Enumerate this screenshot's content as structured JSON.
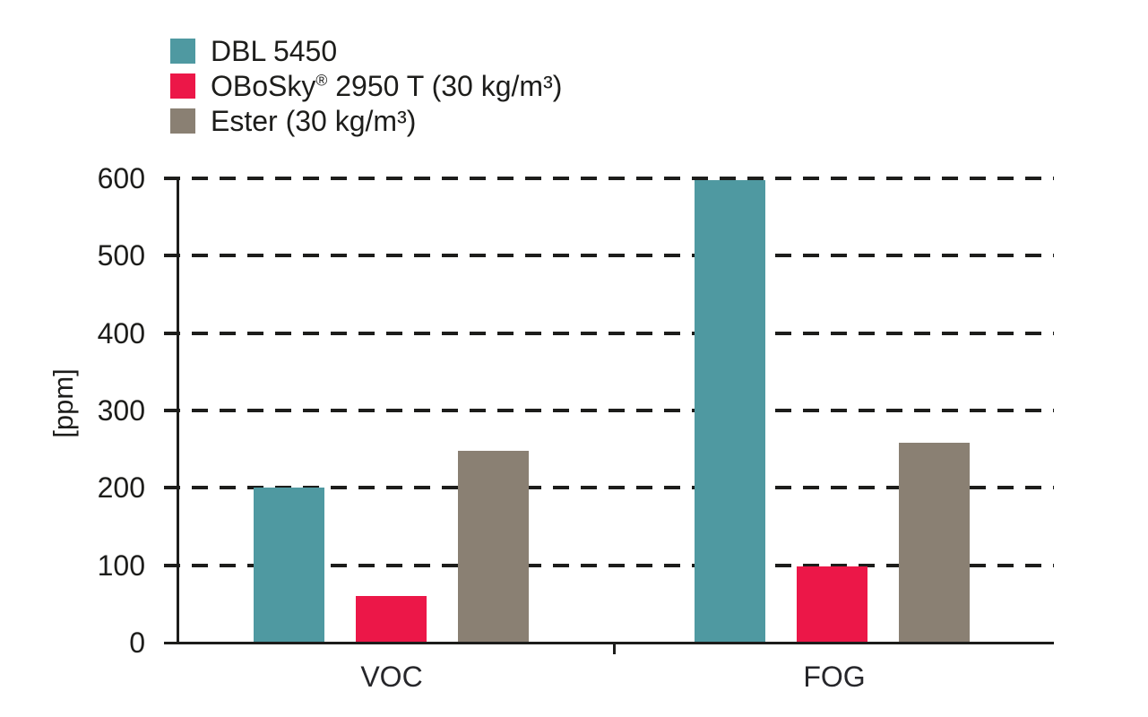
{
  "chart_data": {
    "type": "bar",
    "categories": [
      "VOC",
      "FOG"
    ],
    "series": [
      {
        "name": "DBL 5450",
        "color": "#4f99a1",
        "values": [
          200,
          598
        ]
      },
      {
        "name": "OBoSky® 2950 T (30 kg/m³)",
        "color": "#ec1748",
        "values": [
          60,
          98
        ]
      },
      {
        "name": "Ester (30 kg/m³)",
        "color": "#8a8073",
        "values": [
          248,
          258
        ]
      }
    ],
    "title": "",
    "xlabel": "",
    "ylabel": "[ppm]",
    "ylim": [
      0,
      600
    ],
    "yticks": [
      0,
      100,
      200,
      300,
      400,
      500,
      600
    ],
    "grid": "horizontal-dashed",
    "legend_position": "top-left"
  },
  "legend": {
    "items": [
      {
        "color": "#4f99a1",
        "segments": [
          {
            "text": "DBL 5450"
          }
        ]
      },
      {
        "color": "#ec1748",
        "segments": [
          {
            "text": "OBoSky"
          },
          {
            "text": "®",
            "sup": true
          },
          {
            "text": " 2950 T (30 kg/m³)"
          }
        ]
      },
      {
        "color": "#8a8073",
        "segments": [
          {
            "text": "Ester (30 kg/m³)"
          }
        ]
      }
    ]
  },
  "colors": {
    "axis": "#1d1d1b",
    "text": "#1d1d1b",
    "background": "#ffffff"
  }
}
